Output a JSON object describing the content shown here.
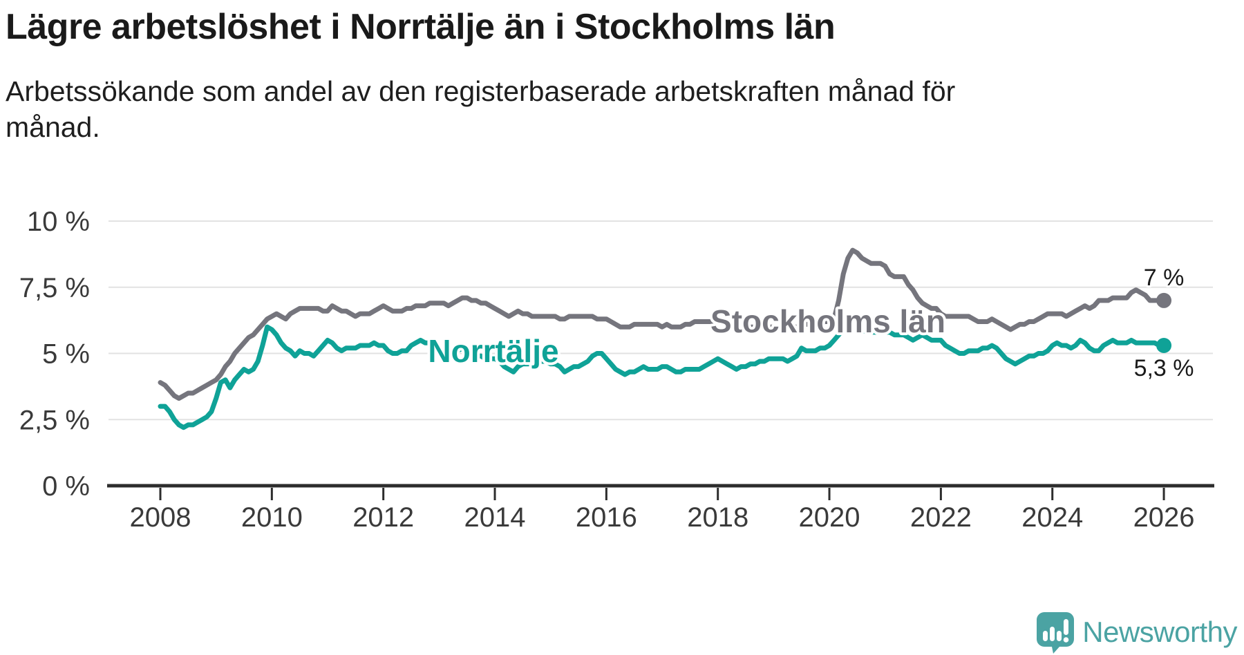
{
  "header": {
    "title": "Lägre arbetslöshet i Norrtälje än i Stockholms län",
    "subtitle": "Arbetssökande som andel av den registerbaserade arbetskraften månad för månad."
  },
  "chart_data": {
    "type": "line",
    "unit": "%",
    "frequency": "monthly",
    "x_start_month": "2008-01",
    "x_end_month": "2026-01",
    "xlim": [
      2007.0,
      2026.9
    ],
    "ylim": [
      0,
      10
    ],
    "grid": "horizontal",
    "x_ticks": [
      2008,
      2010,
      2012,
      2014,
      2016,
      2018,
      2020,
      2022,
      2024,
      2026
    ],
    "y_ticks": [
      0,
      2.5,
      5,
      7.5,
      10
    ],
    "y_tick_labels": [
      "0 %",
      "2,5 %",
      "5 %",
      "7,5 %",
      "10 %"
    ],
    "colors": {
      "stockholm_line": "#75757d",
      "norrtalje_line": "#0fa297",
      "gridline": "#e2e2e2",
      "axis": "#2d2d2d",
      "tick_label": "#3a3a3a",
      "end_label": "#1a1a1a"
    },
    "series": [
      {
        "name": "Stockholms län",
        "color": "#75757d",
        "end_value": 7.0,
        "end_label": "7 %",
        "values": [
          3.9,
          3.8,
          3.6,
          3.4,
          3.3,
          3.4,
          3.5,
          3.5,
          3.6,
          3.7,
          3.8,
          3.9,
          4.0,
          4.2,
          4.5,
          4.7,
          5.0,
          5.2,
          5.4,
          5.6,
          5.7,
          5.9,
          6.1,
          6.3,
          6.4,
          6.5,
          6.4,
          6.3,
          6.5,
          6.6,
          6.7,
          6.7,
          6.7,
          6.7,
          6.7,
          6.6,
          6.6,
          6.8,
          6.7,
          6.6,
          6.6,
          6.5,
          6.4,
          6.5,
          6.5,
          6.5,
          6.6,
          6.7,
          6.8,
          6.7,
          6.6,
          6.6,
          6.6,
          6.7,
          6.7,
          6.8,
          6.8,
          6.8,
          6.9,
          6.9,
          6.9,
          6.9,
          6.8,
          6.9,
          7.0,
          7.1,
          7.1,
          7.0,
          7.0,
          6.9,
          6.9,
          6.8,
          6.7,
          6.6,
          6.5,
          6.4,
          6.5,
          6.6,
          6.5,
          6.5,
          6.4,
          6.4,
          6.4,
          6.4,
          6.4,
          6.4,
          6.3,
          6.3,
          6.4,
          6.4,
          6.4,
          6.4,
          6.4,
          6.4,
          6.3,
          6.3,
          6.3,
          6.2,
          6.1,
          6.0,
          6.0,
          6.0,
          6.1,
          6.1,
          6.1,
          6.1,
          6.1,
          6.1,
          6.0,
          6.1,
          6.0,
          6.0,
          6.0,
          6.1,
          6.1,
          6.2,
          6.2,
          6.2,
          6.2,
          6.2,
          6.2,
          6.2,
          6.1,
          6.1,
          6.0,
          6.0,
          6.0,
          6.0,
          6.0,
          6.0,
          6.0,
          6.0,
          6.0,
          6.0,
          5.9,
          5.9,
          6.0,
          6.0,
          6.1,
          6.1,
          6.1,
          6.1,
          6.1,
          6.2,
          6.2,
          6.3,
          7.0,
          8.0,
          8.6,
          8.9,
          8.8,
          8.6,
          8.5,
          8.4,
          8.4,
          8.4,
          8.3,
          8.0,
          7.9,
          7.9,
          7.9,
          7.6,
          7.4,
          7.1,
          6.9,
          6.8,
          6.7,
          6.7,
          6.5,
          6.4,
          6.4,
          6.4,
          6.4,
          6.4,
          6.4,
          6.3,
          6.2,
          6.2,
          6.2,
          6.3,
          6.2,
          6.1,
          6.0,
          5.9,
          6.0,
          6.1,
          6.1,
          6.2,
          6.2,
          6.3,
          6.4,
          6.5,
          6.5,
          6.5,
          6.5,
          6.4,
          6.5,
          6.6,
          6.7,
          6.8,
          6.7,
          6.8,
          7.0,
          7.0,
          7.0,
          7.1,
          7.1,
          7.1,
          7.1,
          7.3,
          7.4,
          7.3,
          7.2,
          7.0,
          7.0,
          7.0,
          7.0
        ]
      },
      {
        "name": "Norrtälje",
        "color": "#0fa297",
        "end_value": 5.3,
        "end_label": "5,3 %",
        "values": [
          3.0,
          3.0,
          2.8,
          2.5,
          2.3,
          2.2,
          2.3,
          2.3,
          2.4,
          2.5,
          2.6,
          2.8,
          3.3,
          3.9,
          4.0,
          3.7,
          4.0,
          4.2,
          4.4,
          4.3,
          4.4,
          4.7,
          5.3,
          6.0,
          5.9,
          5.7,
          5.4,
          5.2,
          5.1,
          4.9,
          5.1,
          5.0,
          5.0,
          4.9,
          5.1,
          5.3,
          5.5,
          5.4,
          5.2,
          5.1,
          5.2,
          5.2,
          5.2,
          5.3,
          5.3,
          5.3,
          5.4,
          5.3,
          5.3,
          5.1,
          5.0,
          5.0,
          5.1,
          5.1,
          5.3,
          5.4,
          5.5,
          5.4,
          5.4,
          5.3,
          5.2,
          5.1,
          5.0,
          5.0,
          5.1,
          5.2,
          5.1,
          5.0,
          4.9,
          4.9,
          4.8,
          4.8,
          4.8,
          4.7,
          4.5,
          4.4,
          4.3,
          4.5,
          4.6,
          4.6,
          4.6,
          4.6,
          4.7,
          4.7,
          4.6,
          4.6,
          4.5,
          4.3,
          4.4,
          4.5,
          4.5,
          4.6,
          4.7,
          4.9,
          5.0,
          5.0,
          4.8,
          4.6,
          4.4,
          4.3,
          4.2,
          4.3,
          4.3,
          4.4,
          4.5,
          4.4,
          4.4,
          4.4,
          4.5,
          4.5,
          4.4,
          4.3,
          4.3,
          4.4,
          4.4,
          4.4,
          4.4,
          4.5,
          4.6,
          4.7,
          4.8,
          4.7,
          4.6,
          4.5,
          4.4,
          4.5,
          4.5,
          4.6,
          4.6,
          4.7,
          4.7,
          4.8,
          4.8,
          4.8,
          4.8,
          4.7,
          4.8,
          4.9,
          5.2,
          5.1,
          5.1,
          5.1,
          5.2,
          5.2,
          5.3,
          5.5,
          5.7,
          5.9,
          6.0,
          6.0,
          5.9,
          5.9,
          5.8,
          5.8,
          5.8,
          5.8,
          5.8,
          5.8,
          5.7,
          5.7,
          5.7,
          5.6,
          5.5,
          5.6,
          5.7,
          5.6,
          5.5,
          5.5,
          5.5,
          5.3,
          5.2,
          5.1,
          5.0,
          5.0,
          5.1,
          5.1,
          5.1,
          5.2,
          5.2,
          5.3,
          5.2,
          5.0,
          4.8,
          4.7,
          4.6,
          4.7,
          4.8,
          4.9,
          4.9,
          5.0,
          5.0,
          5.1,
          5.3,
          5.4,
          5.3,
          5.3,
          5.2,
          5.3,
          5.5,
          5.4,
          5.2,
          5.1,
          5.1,
          5.3,
          5.4,
          5.5,
          5.4,
          5.4,
          5.4,
          5.5,
          5.4,
          5.4,
          5.4,
          5.4,
          5.4,
          5.3,
          5.3
        ]
      }
    ]
  },
  "branding": {
    "logo_text": "Newsworthy",
    "logo_icon": "bar-chart-speech-bubble-icon",
    "color": "#4ba3a3"
  }
}
